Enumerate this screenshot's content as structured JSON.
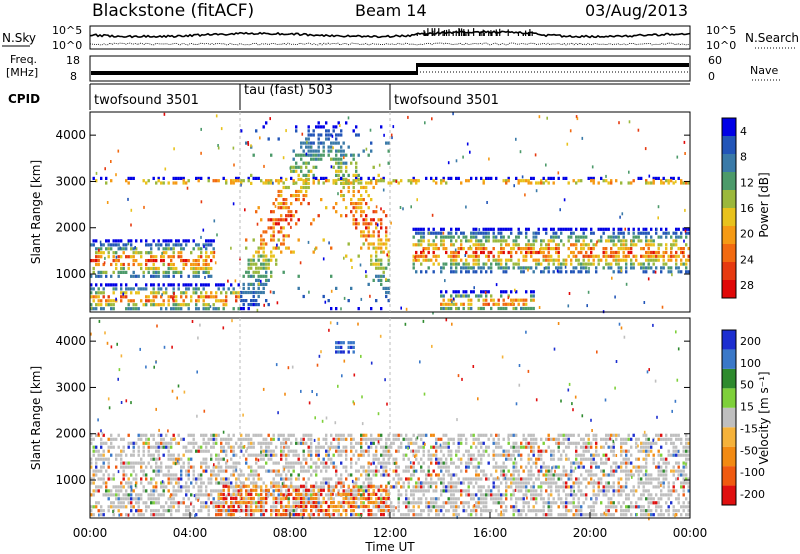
{
  "header": {
    "title": "Blackstone (fitACF)",
    "beam": "Beam 14",
    "date": "03/Aug/2013"
  },
  "noise_panel": {
    "left_label": "N.Sky",
    "left_ticks": [
      "10^5",
      "10^0"
    ],
    "right_ticks": [
      "10^5",
      "10^0"
    ],
    "right_label": "N.Search"
  },
  "freq_panel": {
    "label_line1": "Freq.",
    "label_line2": "[MHz]",
    "left_ticks": [
      "18",
      "8"
    ],
    "right_ticks": [
      "60",
      "0"
    ],
    "right_label": "Nave"
  },
  "cpid": {
    "label": "CPID",
    "segments": [
      {
        "label": "twofsound 3501",
        "start_hour": 0,
        "end_hour": 6
      },
      {
        "label": "tau (fast) 503",
        "start_hour": 6,
        "end_hour": 12
      },
      {
        "label": "twofsound 3501",
        "start_hour": 12,
        "end_hour": 24
      }
    ]
  },
  "chart_data": [
    {
      "type": "heatmap",
      "title": "",
      "xlabel": "Time UT",
      "ylabel": "Slant Range [km]",
      "x_range_hours": [
        0,
        24
      ],
      "ylim": [
        180,
        4500
      ],
      "yticks": [
        "1000",
        "2000",
        "3000",
        "4000"
      ],
      "colorbar": {
        "label": "Power [dB]",
        "ticks": [
          "4",
          "8",
          "12",
          "16",
          "20",
          "24",
          "28"
        ],
        "colors": [
          "#0000e6",
          "#2255b8",
          "#3a7aa8",
          "#4c9a6a",
          "#9bb83c",
          "#e8c21c",
          "#f59a14",
          "#f26a10",
          "#e63a10",
          "#e00808"
        ]
      },
      "features": [
        {
          "name": "daytime band 00-05 UT",
          "x": [
            0.0,
            5.0
          ],
          "y": [
            900,
            1750
          ]
        },
        {
          "name": "near-range echoes 00-06 UT",
          "x": [
            0.0,
            6.0
          ],
          "y": [
            200,
            800
          ]
        },
        {
          "name": "descending arc 06-12 UT",
          "x": [
            6.0,
            12.0
          ],
          "y": [
            200,
            4300
          ]
        },
        {
          "name": "afternoon band 13-24 UT",
          "x": [
            12.9,
            24.0
          ],
          "y": [
            1000,
            2000
          ]
        },
        {
          "name": "near-range echoes 13-18 UT",
          "x": [
            14.0,
            17.8
          ],
          "y": [
            200,
            650
          ]
        },
        {
          "name": "sporadic 3000 km line",
          "x": [
            0.0,
            24.0
          ],
          "y": [
            2950,
            3100
          ]
        }
      ]
    },
    {
      "type": "heatmap",
      "title": "",
      "xlabel": "Time UT",
      "ylabel": "Slant Range [km]",
      "x_range_hours": [
        0,
        24
      ],
      "ylim": [
        180,
        4500
      ],
      "yticks": [
        "1000",
        "2000",
        "3000",
        "4000"
      ],
      "colorbar": {
        "label": "Velocity [m s⁻¹]",
        "ticks": [
          "200",
          "100",
          "50",
          "15",
          "-15",
          "-50",
          "-100",
          "-200"
        ],
        "colors": [
          "#1c2ed0",
          "#3a78c8",
          "#2e8a2e",
          "#7ed03a",
          "#bfbfbf",
          "#f5b23a",
          "#f28a12",
          "#f05a10",
          "#e01010"
        ]
      },
      "features": [
        {
          "name": "ground scatter (grey) 00-24 UT",
          "x": [
            0.0,
            24.0
          ],
          "y": [
            200,
            2000
          ]
        },
        {
          "name": "negative velocity blobs",
          "x": [
            5.0,
            12.0
          ],
          "y": [
            200,
            900
          ]
        },
        {
          "name": "positive velocity patch 10 UT",
          "x": [
            9.8,
            10.6
          ],
          "y": [
            3700,
            4000
          ]
        }
      ]
    }
  ],
  "time_axis": {
    "ticks": [
      "00:00",
      "04:00",
      "08:00",
      "12:00",
      "16:00",
      "20:00",
      "00:00"
    ],
    "label": "Time UT"
  }
}
